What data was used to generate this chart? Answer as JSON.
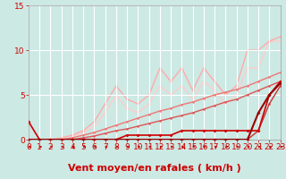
{
  "xlabel": "Vent moyen/en rafales ( km/h )",
  "xlim": [
    0,
    23
  ],
  "ylim": [
    0,
    15
  ],
  "yticks": [
    0,
    5,
    10,
    15
  ],
  "xticks": [
    0,
    1,
    2,
    3,
    4,
    5,
    6,
    7,
    8,
    9,
    10,
    11,
    12,
    13,
    14,
    15,
    16,
    17,
    18,
    19,
    20,
    21,
    22,
    23
  ],
  "background_color": "#cce9e4",
  "grid_color": "#ffffff",
  "lines": [
    {
      "x": [
        0,
        1,
        2,
        3,
        4,
        5,
        6,
        7,
        8,
        9,
        10,
        11,
        12,
        13,
        14,
        15,
        16,
        17,
        18,
        19,
        20,
        21,
        22,
        23
      ],
      "y": [
        0,
        0,
        0,
        0,
        0,
        0,
        0,
        0,
        0,
        0,
        0,
        0,
        0,
        0,
        0,
        0,
        0,
        0,
        0,
        0,
        0,
        3,
        5,
        6.3
      ],
      "color": "#990000",
      "lw": 1.5,
      "marker": "D",
      "ms": 2.0,
      "zorder": 6
    },
    {
      "x": [
        0,
        1,
        2,
        3,
        4,
        5,
        6,
        7,
        8,
        9,
        10,
        11,
        12,
        13,
        14,
        15,
        16,
        17,
        18,
        19,
        20,
        21,
        22,
        23
      ],
      "y": [
        2,
        0,
        0,
        0,
        0,
        0,
        0,
        0,
        0,
        0.5,
        0.5,
        0.5,
        0.5,
        0.5,
        1,
        1,
        1,
        1,
        1,
        1,
        1,
        1,
        5,
        6.5
      ],
      "color": "#cc0000",
      "lw": 1.2,
      "marker": "D",
      "ms": 2.0,
      "zorder": 5
    },
    {
      "x": [
        0,
        1,
        2,
        3,
        4,
        5,
        6,
        7,
        8,
        9,
        10,
        11,
        12,
        13,
        14,
        15,
        16,
        17,
        18,
        19,
        20,
        21,
        22,
        23
      ],
      "y": [
        0,
        0,
        0,
        0,
        0,
        0,
        0,
        0,
        0,
        0,
        0,
        0,
        0,
        0,
        0,
        0,
        0,
        0,
        0,
        0,
        0,
        1,
        4,
        6
      ],
      "color": "#cc3333",
      "lw": 1.0,
      "marker": "o",
      "ms": 1.8,
      "zorder": 4
    },
    {
      "x": [
        0,
        1,
        2,
        3,
        4,
        5,
        6,
        7,
        8,
        9,
        10,
        11,
        12,
        13,
        14,
        15,
        16,
        17,
        18,
        19,
        20,
        21,
        22,
        23
      ],
      "y": [
        0,
        0,
        0,
        0,
        0,
        0.2,
        0.4,
        0.7,
        1,
        1.2,
        1.5,
        1.8,
        2.1,
        2.4,
        2.7,
        3,
        3.4,
        3.8,
        4.2,
        4.5,
        5,
        5.5,
        6,
        6.5
      ],
      "color": "#dd5555",
      "lw": 1.0,
      "marker": "o",
      "ms": 1.8,
      "zorder": 3
    },
    {
      "x": [
        0,
        1,
        2,
        3,
        4,
        5,
        6,
        7,
        8,
        9,
        10,
        11,
        12,
        13,
        14,
        15,
        16,
        17,
        18,
        19,
        20,
        21,
        22,
        23
      ],
      "y": [
        0,
        0,
        0,
        0,
        0.2,
        0.5,
        0.8,
        1.2,
        1.6,
        2.0,
        2.4,
        2.8,
        3.2,
        3.5,
        3.9,
        4.2,
        4.6,
        5.0,
        5.3,
        5.6,
        6.0,
        6.5,
        7.0,
        7.5
      ],
      "color": "#ee7777",
      "lw": 1.0,
      "marker": "o",
      "ms": 1.8,
      "zorder": 2
    },
    {
      "x": [
        0,
        1,
        2,
        3,
        4,
        5,
        6,
        7,
        8,
        9,
        10,
        11,
        12,
        13,
        14,
        15,
        16,
        17,
        18,
        19,
        20,
        21,
        22,
        23
      ],
      "y": [
        0,
        0,
        0,
        0.2,
        0.5,
        1.0,
        2.0,
        4.0,
        6.0,
        4.5,
        4,
        5,
        8,
        6.5,
        8,
        5.5,
        8,
        6.5,
        5,
        6,
        10,
        10,
        11,
        11.5
      ],
      "color": "#ffaaaa",
      "lw": 1.0,
      "marker": "o",
      "ms": 1.8,
      "zorder": 1
    },
    {
      "x": [
        0,
        1,
        2,
        3,
        4,
        5,
        6,
        7,
        8,
        9,
        10,
        11,
        12,
        13,
        14,
        15,
        16,
        17,
        18,
        19,
        20,
        21,
        22,
        23
      ],
      "y": [
        0,
        0,
        0,
        0,
        0.3,
        0.8,
        1.5,
        3,
        5,
        3.5,
        3,
        4,
        6,
        5,
        6,
        4.5,
        6.5,
        5.5,
        4,
        5,
        8,
        8,
        11,
        11
      ],
      "color": "#ffcccc",
      "lw": 1.0,
      "marker": "o",
      "ms": 1.5,
      "zorder": 0
    }
  ],
  "xlabel_fontsize": 8,
  "tick_fontsize": 6.5
}
